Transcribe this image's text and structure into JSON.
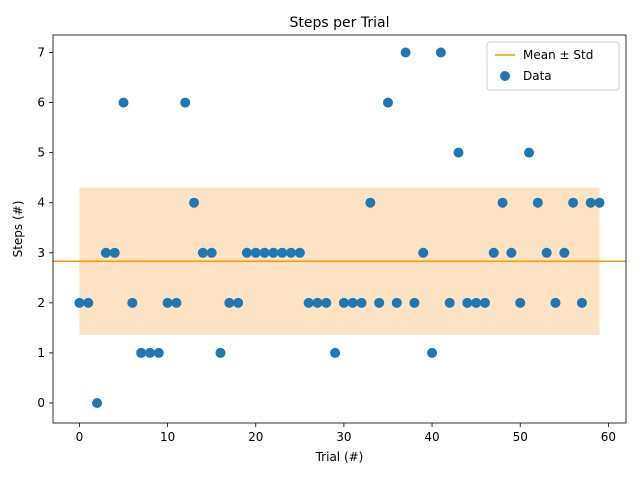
{
  "chart_data": {
    "type": "scatter",
    "title": "Steps per Trial",
    "xlabel": "Trial (#)",
    "ylabel": "Steps (#)",
    "xlim": [
      -3,
      62
    ],
    "ylim": [
      -0.4,
      7.35
    ],
    "xticks": [
      0,
      10,
      20,
      30,
      40,
      50,
      60
    ],
    "yticks": [
      0,
      1,
      2,
      3,
      4,
      5,
      6,
      7
    ],
    "grid": false,
    "legend_position": "top-right",
    "series": [
      {
        "name": "Data",
        "color": "#1f77b4",
        "x": [
          0,
          1,
          2,
          3,
          4,
          5,
          6,
          7,
          8,
          9,
          10,
          11,
          12,
          13,
          14,
          15,
          16,
          17,
          18,
          19,
          20,
          21,
          22,
          23,
          24,
          25,
          26,
          27,
          28,
          29,
          30,
          31,
          32,
          33,
          34,
          35,
          36,
          37,
          38,
          39,
          40,
          41,
          42,
          43,
          44,
          45,
          46,
          47,
          48,
          49,
          50,
          51,
          52,
          53,
          54,
          55,
          56,
          57,
          58,
          59
        ],
        "y": [
          2,
          2,
          0,
          3,
          3,
          6,
          2,
          1,
          1,
          1,
          2,
          2,
          6,
          4,
          3,
          3,
          1,
          2,
          2,
          3,
          3,
          3,
          3,
          3,
          3,
          3,
          2,
          2,
          2,
          1,
          2,
          2,
          2,
          4,
          2,
          6,
          2,
          7,
          2,
          3,
          1,
          7,
          2,
          5,
          2,
          2,
          2,
          3,
          4,
          3,
          2,
          5,
          4,
          3,
          2,
          3,
          4,
          2,
          4,
          4
        ]
      }
    ],
    "mean": {
      "name": "Mean ± Std",
      "color": "#ff9900",
      "value": 2.83,
      "std": 1.47,
      "band_color": "#fde3c3",
      "x_range": [
        0,
        59
      ]
    }
  }
}
